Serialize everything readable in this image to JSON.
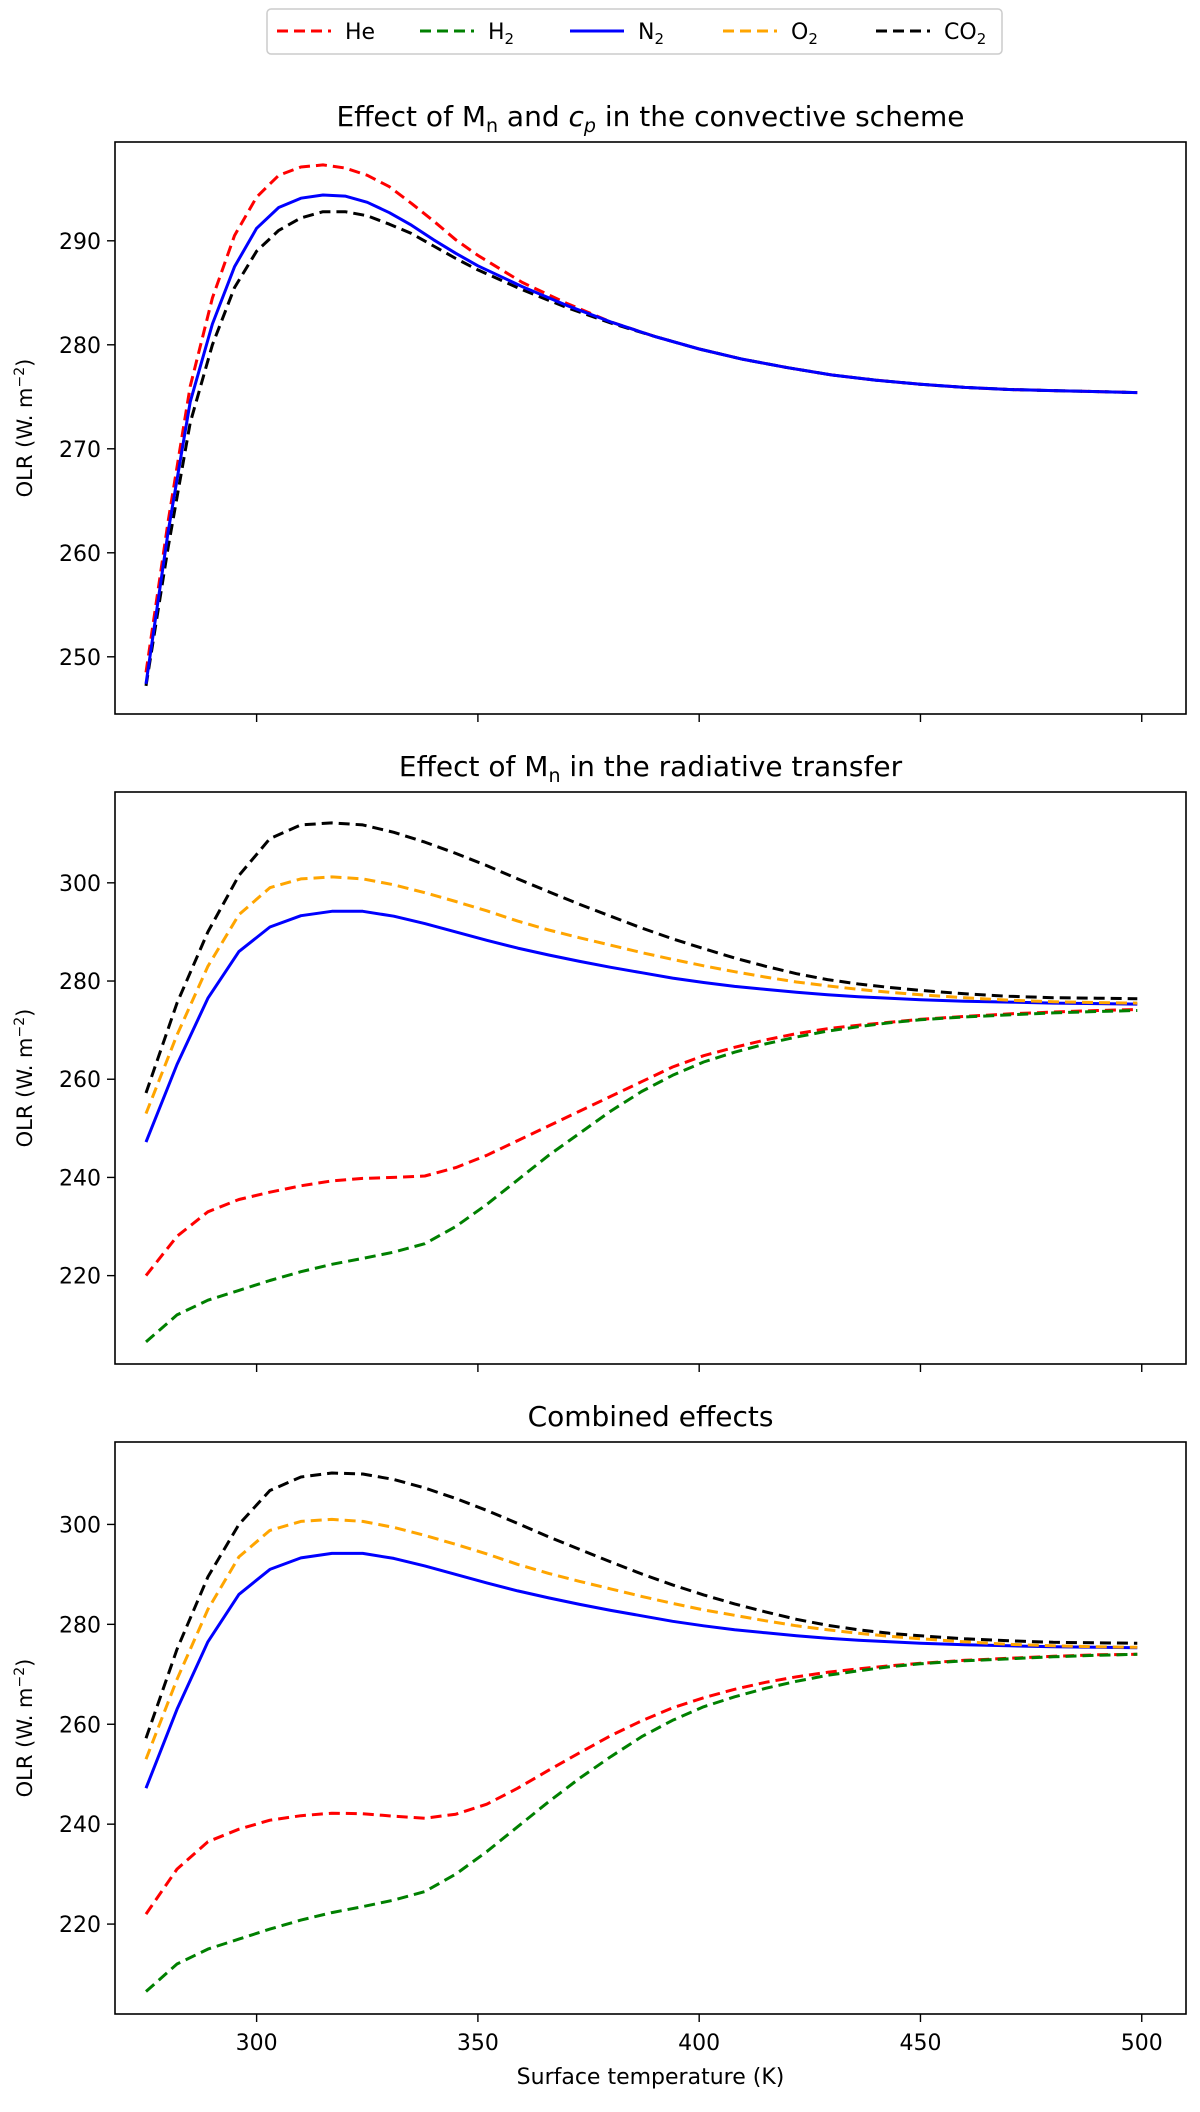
{
  "legend": {
    "entries": [
      {
        "label": "He",
        "sub": "",
        "color": "#ff0000",
        "dash": "dashed"
      },
      {
        "label": "H",
        "sub": "2",
        "color": "#008000",
        "dash": "dashed"
      },
      {
        "label": "N",
        "sub": "2",
        "color": "#0000ff",
        "dash": "solid"
      },
      {
        "label": "O",
        "sub": "2",
        "color": "#ffa500",
        "dash": "dashed"
      },
      {
        "label": "CO",
        "sub": "2",
        "color": "#000000",
        "dash": "dashed"
      }
    ]
  },
  "chart_data": [
    {
      "type": "line",
      "title_parts": [
        "Effect of M",
        "n",
        " and ",
        "c",
        "p",
        " in the convective scheme"
      ],
      "xlabel": "",
      "ylabel_parts": [
        "OLR (W. m",
        "−2",
        ")"
      ],
      "xlim": [
        268,
        510
      ],
      "ylim": [
        244.5,
        299.5
      ],
      "xticks": [
        300,
        350,
        400,
        450,
        500
      ],
      "yticks": [
        250,
        260,
        270,
        280,
        290
      ],
      "show_xticklabels": false,
      "x": [
        275,
        280,
        285,
        290,
        295,
        300,
        305,
        310,
        315,
        320,
        325,
        330,
        335,
        340,
        345,
        350,
        360,
        370,
        380,
        390,
        400,
        410,
        420,
        430,
        440,
        450,
        460,
        470,
        480,
        490,
        499
      ],
      "series": [
        {
          "name": "He",
          "color": "#ff0000",
          "dash": "dashed",
          "values": [
            248.5,
            263,
            276,
            284.5,
            290.5,
            294.2,
            296.3,
            297.1,
            297.3,
            297.0,
            296.3,
            295.2,
            293.6,
            291.9,
            290.1,
            288.6,
            286.0,
            284.0,
            282.2,
            280.8,
            279.6,
            278.6,
            277.8,
            277.1,
            276.6,
            276.2,
            275.9,
            275.7,
            275.6,
            275.5,
            275.4
          ]
        },
        {
          "name": "CO2",
          "color": "#000000",
          "dash": "dashed",
          "values": [
            247.2,
            260.5,
            272.5,
            280,
            285.5,
            289.0,
            291.0,
            292.2,
            292.8,
            292.8,
            292.4,
            291.6,
            290.7,
            289.5,
            288.3,
            287.2,
            285.3,
            283.6,
            282.1,
            280.8,
            279.6,
            278.6,
            277.8,
            277.1,
            276.6,
            276.2,
            275.9,
            275.7,
            275.6,
            275.5,
            275.4
          ]
        },
        {
          "name": "N2",
          "color": "#0000ff",
          "dash": "solid",
          "values": [
            247.4,
            262,
            274.5,
            282,
            287.5,
            291.2,
            293.2,
            294.1,
            294.4,
            294.3,
            293.7,
            292.7,
            291.5,
            290.1,
            288.8,
            287.6,
            285.6,
            283.8,
            282.2,
            280.8,
            279.6,
            278.6,
            277.8,
            277.1,
            276.6,
            276.2,
            275.9,
            275.7,
            275.6,
            275.5,
            275.4
          ]
        }
      ]
    },
    {
      "type": "line",
      "title_parts": [
        "Effect of M",
        "n",
        " in the radiative transfer"
      ],
      "xlabel": "",
      "ylabel_parts": [
        "OLR (W. m",
        "−2",
        ")"
      ],
      "xlim": [
        268,
        510
      ],
      "ylim": [
        202,
        318.5
      ],
      "xticks": [
        300,
        350,
        400,
        450,
        500
      ],
      "yticks": [
        220,
        240,
        260,
        280,
        300
      ],
      "show_xticklabels": false,
      "x": [
        275,
        282,
        289,
        296,
        303,
        310,
        317,
        324,
        331,
        338,
        345,
        352,
        359,
        366,
        373,
        380,
        387,
        394,
        401,
        408,
        415,
        422,
        429,
        436,
        443,
        450,
        460,
        470,
        480,
        490,
        499
      ],
      "series": [
        {
          "name": "He",
          "color": "#ff0000",
          "dash": "dashed",
          "values": [
            220,
            228,
            233,
            235.5,
            237,
            238.3,
            239.3,
            239.8,
            240,
            240.3,
            242,
            244.5,
            247.5,
            250.5,
            253.5,
            256.5,
            259.5,
            262.5,
            264.8,
            266.5,
            268,
            269.3,
            270.3,
            271,
            271.6,
            272.2,
            272.8,
            273.3,
            273.7,
            274,
            274.2
          ]
        },
        {
          "name": "H2",
          "color": "#008000",
          "dash": "dashed",
          "values": [
            206.5,
            212,
            215,
            217,
            219,
            220.8,
            222.3,
            223.5,
            224.8,
            226.5,
            230,
            234.5,
            239.5,
            244.5,
            249,
            253.5,
            257.5,
            260.8,
            263.5,
            265.5,
            267.2,
            268.6,
            269.8,
            270.7,
            271.5,
            272.1,
            272.7,
            273.1,
            273.5,
            273.8,
            274
          ]
        },
        {
          "name": "N2",
          "color": "#0000ff",
          "dash": "solid",
          "values": [
            247.2,
            263,
            276.5,
            286,
            291,
            293.3,
            294.2,
            294.2,
            293.2,
            291.7,
            290,
            288.3,
            286.7,
            285.3,
            284,
            282.8,
            281.7,
            280.6,
            279.7,
            278.9,
            278.3,
            277.7,
            277.2,
            276.8,
            276.5,
            276.2,
            275.9,
            275.7,
            275.5,
            275.4,
            275.3
          ]
        },
        {
          "name": "O2",
          "color": "#ffa500",
          "dash": "dashed",
          "values": [
            253,
            269,
            283,
            293.5,
            299,
            300.8,
            301.2,
            300.8,
            299.6,
            298,
            296.2,
            294.3,
            292.2,
            290.4,
            288.8,
            287.3,
            285.8,
            284.4,
            283.1,
            281.9,
            280.8,
            279.8,
            279,
            278.3,
            277.7,
            277.2,
            276.6,
            276.1,
            275.8,
            275.6,
            275.5
          ]
        },
        {
          "name": "CO2",
          "color": "#000000",
          "dash": "dashed",
          "values": [
            257.2,
            275.5,
            290,
            301.5,
            309,
            311.8,
            312.2,
            311.8,
            310.3,
            308.3,
            306,
            303.5,
            300.8,
            298.2,
            295.6,
            293.2,
            290.8,
            288.6,
            286.6,
            284.7,
            283,
            281.5,
            280.3,
            279.4,
            278.7,
            278.1,
            277.4,
            276.9,
            276.6,
            276.5,
            276.4
          ]
        }
      ]
    },
    {
      "type": "line",
      "title_parts": [
        "Combined effects"
      ],
      "xlabel": "Surface temperature (K)",
      "ylabel_parts": [
        "OLR (W. m",
        "−2",
        ")"
      ],
      "xlim": [
        268,
        510
      ],
      "ylim": [
        202,
        316.5
      ],
      "xticks": [
        300,
        350,
        400,
        450,
        500
      ],
      "yticks": [
        220,
        240,
        260,
        280,
        300
      ],
      "show_xticklabels": true,
      "x": [
        275,
        282,
        289,
        296,
        303,
        310,
        317,
        324,
        331,
        338,
        345,
        352,
        359,
        366,
        373,
        380,
        387,
        394,
        401,
        408,
        415,
        422,
        429,
        436,
        443,
        450,
        460,
        470,
        480,
        490,
        499
      ],
      "series": [
        {
          "name": "He",
          "color": "#ff0000",
          "dash": "dashed",
          "values": [
            222,
            231,
            236.5,
            239,
            240.8,
            241.7,
            242.2,
            242.1,
            241.6,
            241.2,
            242,
            244,
            247.2,
            250.8,
            254.3,
            257.7,
            260.7,
            263.3,
            265.3,
            267,
            268.4,
            269.5,
            270.4,
            271.1,
            271.7,
            272.2,
            272.8,
            273.2,
            273.6,
            273.9,
            274
          ]
        },
        {
          "name": "H2",
          "color": "#008000",
          "dash": "dashed",
          "values": [
            206.5,
            212,
            215,
            217,
            219,
            220.8,
            222.3,
            223.5,
            224.8,
            226.5,
            230,
            234.5,
            239.5,
            244.5,
            249.2,
            253.5,
            257.5,
            260.8,
            263.5,
            265.5,
            267.2,
            268.6,
            269.8,
            270.7,
            271.5,
            272.1,
            272.7,
            273.1,
            273.5,
            273.8,
            274
          ]
        },
        {
          "name": "N2",
          "color": "#0000ff",
          "dash": "solid",
          "values": [
            247.2,
            263,
            276.5,
            286,
            291,
            293.3,
            294.2,
            294.2,
            293.2,
            291.7,
            290,
            288.3,
            286.7,
            285.3,
            284,
            282.8,
            281.7,
            280.6,
            279.7,
            278.9,
            278.3,
            277.7,
            277.2,
            276.8,
            276.5,
            276.2,
            275.9,
            275.7,
            275.5,
            275.4,
            275.3
          ]
        },
        {
          "name": "O2",
          "color": "#ffa500",
          "dash": "dashed",
          "values": [
            253,
            269,
            283,
            293.5,
            298.8,
            300.6,
            301,
            300.6,
            299.4,
            297.8,
            296,
            294.1,
            292,
            290.2,
            288.6,
            287.1,
            285.6,
            284.2,
            282.9,
            281.8,
            280.7,
            279.7,
            278.9,
            278.2,
            277.6,
            277.1,
            276.5,
            276,
            275.7,
            275.5,
            275.4
          ]
        },
        {
          "name": "CO2",
          "color": "#000000",
          "dash": "dashed",
          "values": [
            257.2,
            275,
            289.5,
            300,
            306.8,
            309.5,
            310.3,
            310.1,
            309,
            307.3,
            305.2,
            302.8,
            300.2,
            297.5,
            295,
            292.5,
            290.1,
            287.9,
            285.9,
            284.1,
            282.5,
            281,
            279.8,
            278.9,
            278.2,
            277.7,
            277.1,
            276.7,
            276.4,
            276.3,
            276.2
          ]
        }
      ]
    }
  ]
}
